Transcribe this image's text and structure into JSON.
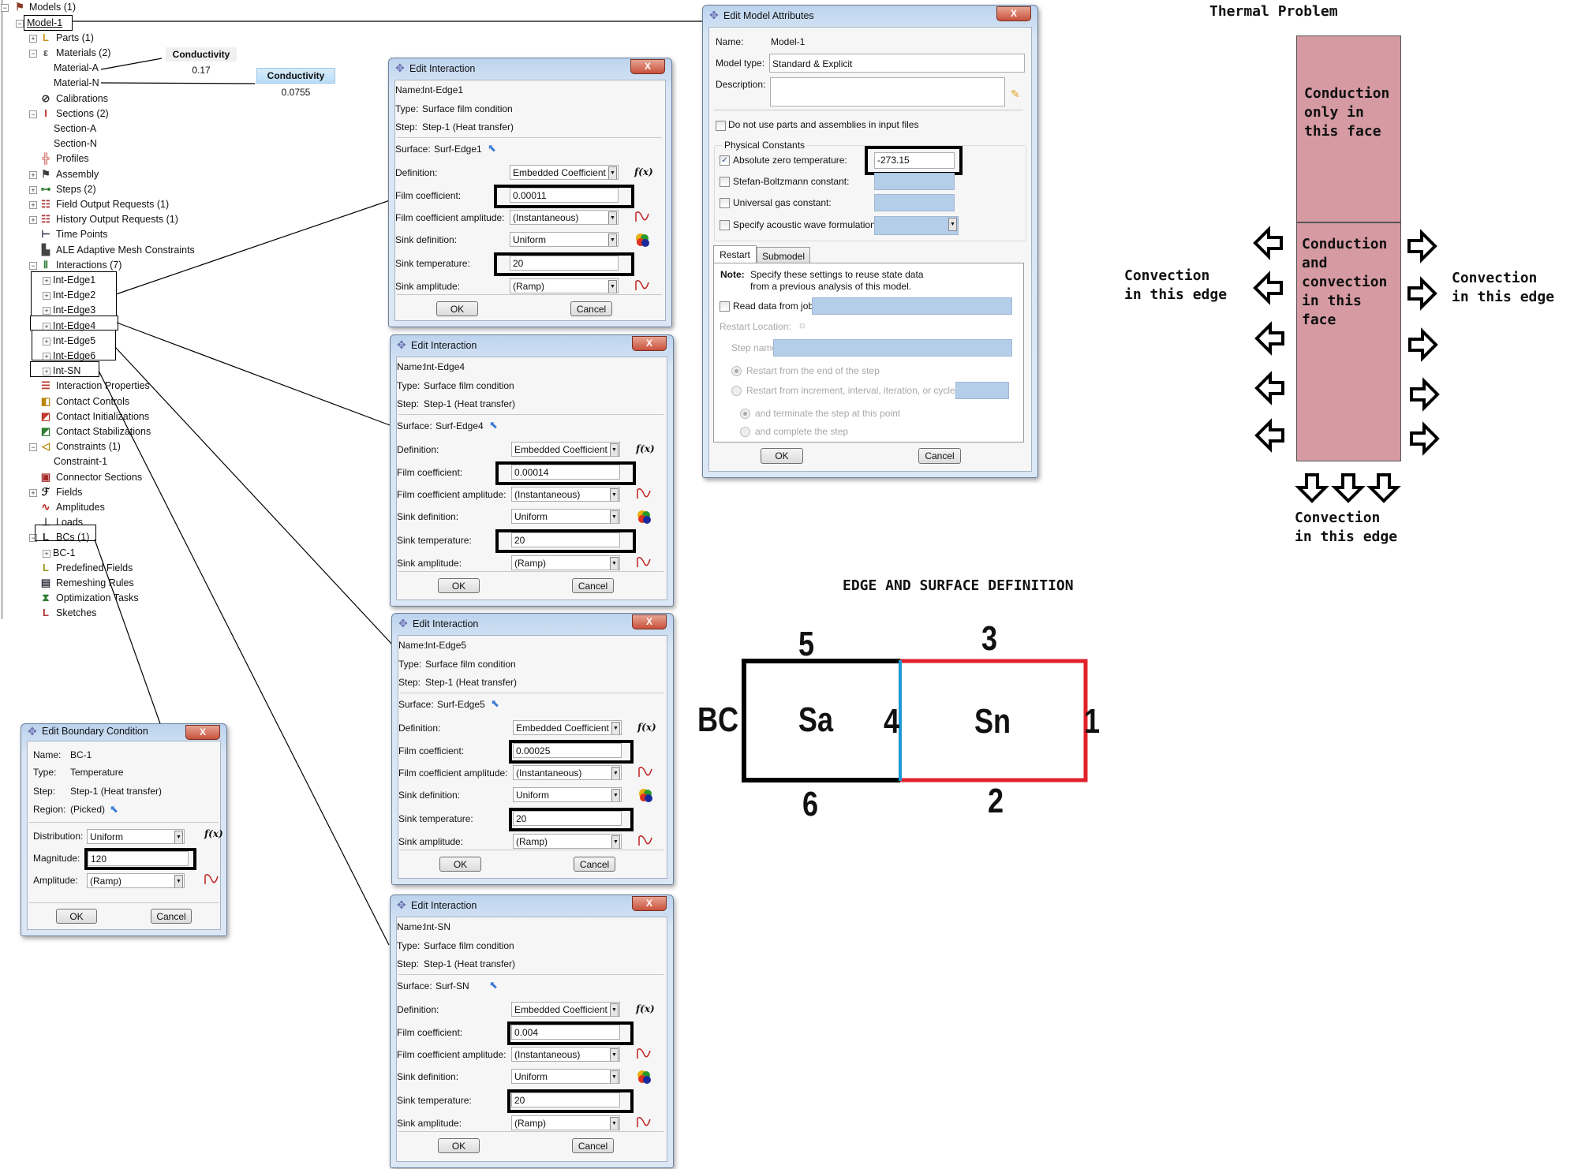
{
  "tree": {
    "items": [
      {
        "label": "Models (1)",
        "lvl": 0,
        "exp": "minus",
        "icon": "models-icon"
      },
      {
        "label": "Model-1",
        "lvl": 1,
        "exp": "minus",
        "icon": null
      },
      {
        "label": "Parts (1)",
        "lvl": 2,
        "exp": "plus",
        "icon": "parts-icon"
      },
      {
        "label": "Materials (2)",
        "lvl": 2,
        "exp": "minus",
        "icon": "materials-icon"
      },
      {
        "label": "Material-A",
        "lvl": 3,
        "exp": "none",
        "icon": null
      },
      {
        "label": "Material-N",
        "lvl": 3,
        "exp": "none",
        "icon": null
      },
      {
        "label": "Calibrations",
        "lvl": 2,
        "exp": "none",
        "icon": "calibrations-icon"
      },
      {
        "label": "Sections (2)",
        "lvl": 2,
        "exp": "minus",
        "icon": "sections-icon"
      },
      {
        "label": "Section-A",
        "lvl": 3,
        "exp": "none",
        "icon": null
      },
      {
        "label": "Section-N",
        "lvl": 3,
        "exp": "none",
        "icon": null
      },
      {
        "label": "Profiles",
        "lvl": 2,
        "exp": "none",
        "icon": "profiles-icon"
      },
      {
        "label": "Assembly",
        "lvl": 2,
        "exp": "plus",
        "icon": "assembly-icon"
      },
      {
        "label": "Steps (2)",
        "lvl": 2,
        "exp": "plus",
        "icon": "steps-icon"
      },
      {
        "label": "Field Output Requests (1)",
        "lvl": 2,
        "exp": "plus",
        "icon": "field-output-icon"
      },
      {
        "label": "History Output Requests (1)",
        "lvl": 2,
        "exp": "plus",
        "icon": "history-output-icon"
      },
      {
        "label": "Time Points",
        "lvl": 2,
        "exp": "none",
        "icon": "time-points-icon"
      },
      {
        "label": "ALE Adaptive Mesh Constraints",
        "lvl": 2,
        "exp": "none",
        "icon": "ale-mesh-icon"
      },
      {
        "label": "Interactions (7)",
        "lvl": 2,
        "exp": "minus",
        "icon": "interactions-icon"
      },
      {
        "label": "Int-Edge1",
        "lvl": 3,
        "exp": "plus",
        "icon": null
      },
      {
        "label": "Int-Edge2",
        "lvl": 3,
        "exp": "plus",
        "icon": null
      },
      {
        "label": "Int-Edge3",
        "lvl": 3,
        "exp": "plus",
        "icon": null
      },
      {
        "label": "Int-Edge4",
        "lvl": 3,
        "exp": "plus",
        "icon": null
      },
      {
        "label": "Int-Edge5",
        "lvl": 3,
        "exp": "plus",
        "icon": null
      },
      {
        "label": "Int-Edge6",
        "lvl": 3,
        "exp": "plus",
        "icon": null
      },
      {
        "label": "Int-SN",
        "lvl": 3,
        "exp": "plus",
        "icon": null
      },
      {
        "label": "Interaction Properties",
        "lvl": 2,
        "exp": "none",
        "icon": "interaction-properties-icon"
      },
      {
        "label": "Contact Controls",
        "lvl": 2,
        "exp": "none",
        "icon": "contact-controls-icon"
      },
      {
        "label": "Contact Initializations",
        "lvl": 2,
        "exp": "none",
        "icon": "contact-initializations-icon"
      },
      {
        "label": "Contact Stabilizations",
        "lvl": 2,
        "exp": "none",
        "icon": "contact-stabilizations-icon"
      },
      {
        "label": "Constraints (1)",
        "lvl": 2,
        "exp": "minus",
        "icon": "constraints-icon"
      },
      {
        "label": "Constraint-1",
        "lvl": 3,
        "exp": "none",
        "icon": null
      },
      {
        "label": "Connector Sections",
        "lvl": 2,
        "exp": "none",
        "icon": "connector-sections-icon"
      },
      {
        "label": "Fields",
        "lvl": 2,
        "exp": "plus",
        "icon": "fields-icon"
      },
      {
        "label": "Amplitudes",
        "lvl": 2,
        "exp": "none",
        "icon": "amplitudes-icon"
      },
      {
        "label": "Loads",
        "lvl": 2,
        "exp": "none",
        "icon": "loads-icon"
      },
      {
        "label": "BCs (1)",
        "lvl": 2,
        "exp": "minus",
        "icon": "bcs-icon"
      },
      {
        "label": "BC-1",
        "lvl": 3,
        "exp": "plus",
        "icon": null
      },
      {
        "label": "Predefined Fields",
        "lvl": 2,
        "exp": "none",
        "icon": "predefined-fields-icon"
      },
      {
        "label": "Remeshing Rules",
        "lvl": 2,
        "exp": "none",
        "icon": "remeshing-rules-icon"
      },
      {
        "label": "Optimization Tasks",
        "lvl": 2,
        "exp": "none",
        "icon": "optimization-tasks-icon"
      },
      {
        "label": "Sketches",
        "lvl": 2,
        "exp": "none",
        "icon": "sketches-icon"
      }
    ]
  },
  "conductivity": [
    {
      "header": "Conductivity",
      "value": "0.17"
    },
    {
      "header": "Conductivity",
      "value": "0.0755"
    }
  ],
  "interaction_labels": {
    "title": "Edit Interaction",
    "name": "Name:",
    "type": "Type:",
    "step": "Step:",
    "surface": "Surface:",
    "definition": "Definition:",
    "film": "Film coefficient:",
    "film_amp": "Film coefficient amplitude:",
    "sink_def": "Sink definition:",
    "sink_temp": "Sink temperature:",
    "sink_amp": "Sink amplitude:",
    "ok": "OK",
    "cancel": "Cancel",
    "fx": "f(x)"
  },
  "interactions": [
    {
      "name": "Int-Edge1",
      "type": "Surface film condition",
      "step": "Step-1 (Heat transfer)",
      "surface": "Surf-Edge1",
      "definition": "Embedded Coefficient",
      "film": "0.00011",
      "film_amp": "(Instantaneous)",
      "sink_def": "Uniform",
      "sink_temp": "20",
      "sink_amp": "(Ramp)"
    },
    {
      "name": "Int-Edge4",
      "type": "Surface film condition",
      "step": "Step-1 (Heat transfer)",
      "surface": "Surf-Edge4",
      "definition": "Embedded Coefficient",
      "film": "0.00014",
      "film_amp": "(Instantaneous)",
      "sink_def": "Uniform",
      "sink_temp": "20",
      "sink_amp": "(Ramp)"
    },
    {
      "name": "Int-Edge5",
      "type": "Surface film condition",
      "step": "Step-1 (Heat transfer)",
      "surface": "Surf-Edge5",
      "definition": "Embedded Coefficient",
      "film": "0.00025",
      "film_amp": "(Instantaneous)",
      "sink_def": "Uniform",
      "sink_temp": "20",
      "sink_amp": "(Ramp)"
    },
    {
      "name": "Int-SN",
      "type": "Surface film condition",
      "step": "Step-1 (Heat transfer)",
      "surface": "Surf-SN",
      "definition": "Embedded Coefficient",
      "film": "0.004",
      "film_amp": "(Instantaneous)",
      "sink_def": "Uniform",
      "sink_temp": "20",
      "sink_amp": "(Ramp)"
    }
  ],
  "model_attributes": {
    "title": "Edit Model Attributes",
    "name_label": "Name:",
    "name": "Model-1",
    "model_type_label": "Model type:",
    "model_type": "Standard & Explicit",
    "description_label": "Description:",
    "description": "",
    "no_parts_label": "Do not use parts and assemblies in input files",
    "no_parts_checked": false,
    "physical_constants": "Physical Constants",
    "abs_zero_label": "Absolute zero temperature:",
    "abs_zero_checked": true,
    "abs_zero": "-273.15",
    "stefan_label": "Stefan-Boltzmann constant:",
    "stefan_checked": false,
    "gas_label": "Universal gas constant:",
    "gas_checked": false,
    "acoustic_label": "Specify acoustic wave formulation:",
    "acoustic_checked": false,
    "tabs": [
      "Restart",
      "Submodel"
    ],
    "active_tab": "Restart",
    "note_label": "Note:",
    "note_line1": "Specify these settings to reuse state data",
    "note_line2": "from a previous analysis of this model.",
    "read_job_label": "Read data from job:",
    "read_job_checked": false,
    "restart_location": "Restart Location:",
    "step_name_label": "Step name:",
    "radio_end": "Restart from the end of the step",
    "radio_increment": "Restart from increment, interval, iteration, or cycle:",
    "radio_terminate": "and terminate the step at this point",
    "radio_complete": "and complete the step",
    "ok": "OK",
    "cancel": "Cancel"
  },
  "boundary_condition": {
    "title": "Edit Boundary Condition",
    "name_label": "Name:",
    "name": "BC-1",
    "type_label": "Type:",
    "type": "Temperature",
    "step_label": "Step:",
    "step": "Step-1 (Heat transfer)",
    "region_label": "Region:",
    "region": "(Picked)",
    "distribution_label": "Distribution:",
    "distribution": "Uniform",
    "magnitude_label": "Magnitude:",
    "magnitude": "120",
    "amplitude_label": "Amplitude:",
    "amplitude": "(Ramp)",
    "fx": "f(x)",
    "ok": "OK",
    "cancel": "Cancel"
  },
  "thermal_problem": {
    "title": "Thermal Problem",
    "upper_face": [
      "Conduction",
      "only in",
      "this face"
    ],
    "lower_face": [
      "Conduction",
      "and",
      "convection",
      "in this",
      "face"
    ],
    "left_edge": [
      "Convection",
      "in this edge"
    ],
    "right_edge": [
      "Convection",
      "in this edge"
    ],
    "bottom_edge": [
      "Convection",
      "in this edge"
    ],
    "face_color": "#d59aa2"
  },
  "edge_definition": {
    "title": "EDGE AND SURFACE DEFINITION",
    "bc": "BC",
    "surface_a": "Sa",
    "surface_n": "Sn",
    "edges": {
      "e1": "1",
      "e2": "2",
      "e3": "3",
      "e4": "4",
      "e5": "5",
      "e6": "6"
    },
    "colors": {
      "sa_edges": "#000000",
      "sn_edges": "#e0202a",
      "interface": "#1a9ad6"
    }
  }
}
